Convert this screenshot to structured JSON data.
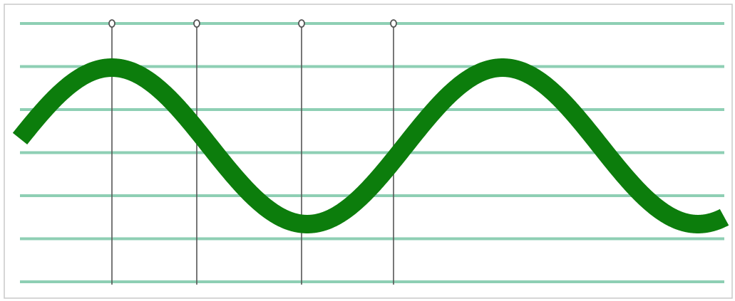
{
  "diagram": {
    "colors": {
      "background": "#ffffff",
      "border": "#c8c8c8",
      "staff_line": "#8ecfb4",
      "wave": "#0c7d0c",
      "marker": "#555555"
    },
    "staff_line_count": 7,
    "wave": {
      "cycles_visible": 1.8,
      "phase_start_fraction": 0.5
    },
    "markers": [
      {
        "id": "marker-1",
        "phase": "crest"
      },
      {
        "id": "marker-2",
        "phase": "zero-crossing-down"
      },
      {
        "id": "marker-3",
        "phase": "trough"
      },
      {
        "id": "marker-4",
        "phase": "zero-crossing-up"
      }
    ]
  }
}
